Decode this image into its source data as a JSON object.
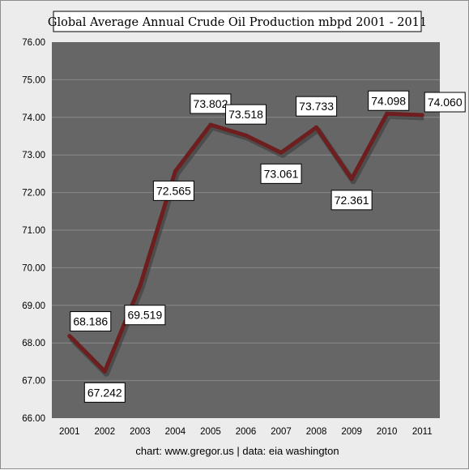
{
  "chart_data": {
    "type": "line",
    "title": "Global Average Annual Crude Oil Production mbpd 2001 - 2011",
    "categories": [
      "2001",
      "2002",
      "2003",
      "2004",
      "2005",
      "2006",
      "2007",
      "2008",
      "2009",
      "2010",
      "2011"
    ],
    "values": [
      68.186,
      67.242,
      69.519,
      72.565,
      73.802,
      73.518,
      73.061,
      73.733,
      72.361,
      74.098,
      74.06
    ],
    "data_labels": [
      "68.186",
      "67.242",
      "69.519",
      "72.565",
      "73.802",
      "73.518",
      "73.061",
      "73.733",
      "72.361",
      "74.098",
      "74.060"
    ],
    "y_ticks": [
      "66.00",
      "67.00",
      "68.00",
      "69.00",
      "70.00",
      "71.00",
      "72.00",
      "73.00",
      "74.00",
      "75.00",
      "76.00"
    ],
    "ylim": [
      66,
      76
    ],
    "grid": true,
    "legend": "none",
    "xlabel": "",
    "ylabel": "",
    "line_color": "#6e1e1e",
    "plot_background": "#666666",
    "gridline_color": "#8a8a8a"
  },
  "footer": {
    "credit": "chart:  www.gregor.us   |   data: eia washington"
  }
}
